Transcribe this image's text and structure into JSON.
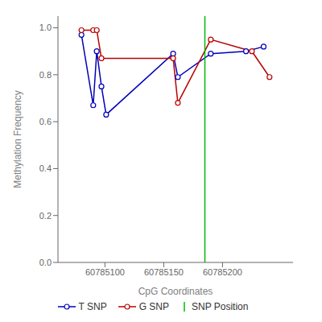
{
  "chart_data": {
    "type": "line",
    "xlabel": "CpG Coordinates",
    "ylabel": "Methylation Frequency",
    "xlim": [
      60785060,
      60785260
    ],
    "ylim": [
      0.0,
      1.05
    ],
    "xticks": [
      60785100,
      60785150,
      60785200
    ],
    "yticks": [
      {
        "value": 0.0,
        "label": "0.0"
      },
      0.2,
      0.4,
      0.6,
      0.8,
      {
        "value": 1.0,
        "label": "1.0"
      }
    ],
    "grid": false,
    "legend": "bottom",
    "series": [
      {
        "name": "T SNP",
        "color": "#0000BB",
        "marker": "circle",
        "line_style": "solid",
        "x": [
          60785080,
          60785090,
          60785093,
          60785097,
          60785101,
          60785158,
          60785162,
          60785190,
          60785220,
          60785235
        ],
        "values": [
          0.97,
          0.67,
          0.9,
          0.75,
          0.63,
          0.89,
          0.79,
          0.89,
          0.9,
          0.92
        ]
      },
      {
        "name": "G SNP",
        "color": "#BB0000",
        "marker": "circle",
        "line_style": "solid",
        "x": [
          60785080,
          60785090,
          60785093,
          60785097,
          60785158,
          60785162,
          60785190,
          60785225,
          60785240
        ],
        "values": [
          0.99,
          0.99,
          0.99,
          0.87,
          0.87,
          0.68,
          0.95,
          0.9,
          0.79
        ]
      }
    ],
    "vlines": [
      {
        "name": "SNP Position",
        "x": 60785185,
        "color": "#00BB00"
      }
    ]
  }
}
